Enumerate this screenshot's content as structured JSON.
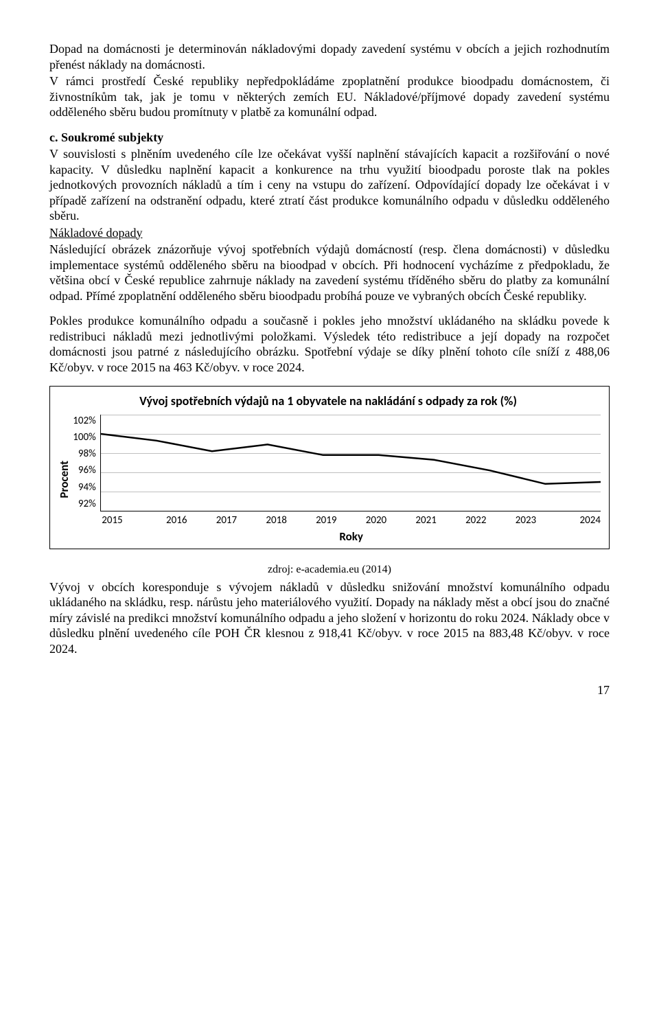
{
  "para1": "Dopad na domácnosti je determinován nákladovými dopady zavedení systému v obcích a jejich rozhodnutím přenést náklady na domácnosti.",
  "para2": "V rámci prostředí České republiky nepředpokládáme zpoplatnění produkce bioodpadu domácnostem, či živnostníkům tak, jak je tomu v některých zemích EU. Nákladové/příjmové dopady zavedení systému odděleného sběru budou promítnuty v platbě za komunální odpad.",
  "heading_c": "c.  Soukromé subjekty",
  "para3a": "V souvislosti s plněním uvedeného cíle lze očekávat vyšší naplnění stávajících kapacit a rozšiřování o nové kapacity. V důsledku naplnění kapacit a konkurence na trhu využití bioodpadu poroste tlak na pokles jednotkových provozních nákladů a tím i ceny na vstupu do zařízení. Odpovídající dopady lze očekávat i v případě zařízení na odstranění odpadu, které ztratí část produkce komunálního odpadu v důsledku odděleného sběru.",
  "cost_heading": "Nákladové dopady",
  "para4": "Následující obrázek znázorňuje vývoj spotřebních výdajů domácností (resp. člena domácnosti) v důsledku implementace systémů odděleného sběru na bioodpad v obcích. Při hodnocení vycházíme z předpokladu, že většina obcí v České republice zahrnuje náklady na zavedení systému tříděného sběru do platby za komunální odpad. Přímé zpoplatnění odděleného sběru bioodpadu probíhá pouze ve vybraných obcích České republiky.",
  "para5": "Pokles produkce komunálního odpadu a současně i pokles jeho množství ukládaného na skládku povede k redistribuci nákladů mezi jednotlivými položkami. Výsledek této redistribuce a její dopady na rozpočet domácnosti jsou patrné z následujícího obrázku. Spotřební výdaje se díky plnění tohoto cíle sníží z 488,06 Kč/obyv. v roce 2015 na 463 Kč/obyv. v roce 2024.",
  "chart": {
    "title": "Vývoj spotřebních výdajů na 1 obyvatele na nakládání s odpady za rok (%)",
    "ylabel": "Procent",
    "xlabel": "Roky",
    "y_ticks": [
      "102%",
      "100%",
      "98%",
      "96%",
      "94%",
      "92%"
    ],
    "x_ticks": [
      "2015",
      "2016",
      "2017",
      "2018",
      "2019",
      "2020",
      "2021",
      "2022",
      "2023",
      "2024"
    ],
    "ylim_min": 92,
    "ylim_max": 102,
    "values": [
      100,
      99.3,
      98.2,
      98.9,
      97.8,
      97.8,
      97.3,
      96.2,
      94.8,
      95.0
    ],
    "grid_color": "#bfbfbf",
    "line_color": "#000000",
    "line_width": 2.5,
    "background_color": "#ffffff"
  },
  "source": "zdroj: e-academia.eu (2014)",
  "para6": "Vývoj v obcích koresponduje s vývojem nákladů v důsledku snižování množství komunálního odpadu ukládaného na skládku, resp. nárůstu jeho materiálového využití. Dopady na náklady měst a obcí jsou do značné míry závislé na predikci množství komunálního odpadu a jeho složení v horizontu do roku 2024. Náklady obce v důsledku plnění uvedeného cíle POH ČR klesnou z 918,41 Kč/obyv. v roce 2015 na 883,48 Kč/obyv. v roce 2024.",
  "page_number": "17"
}
